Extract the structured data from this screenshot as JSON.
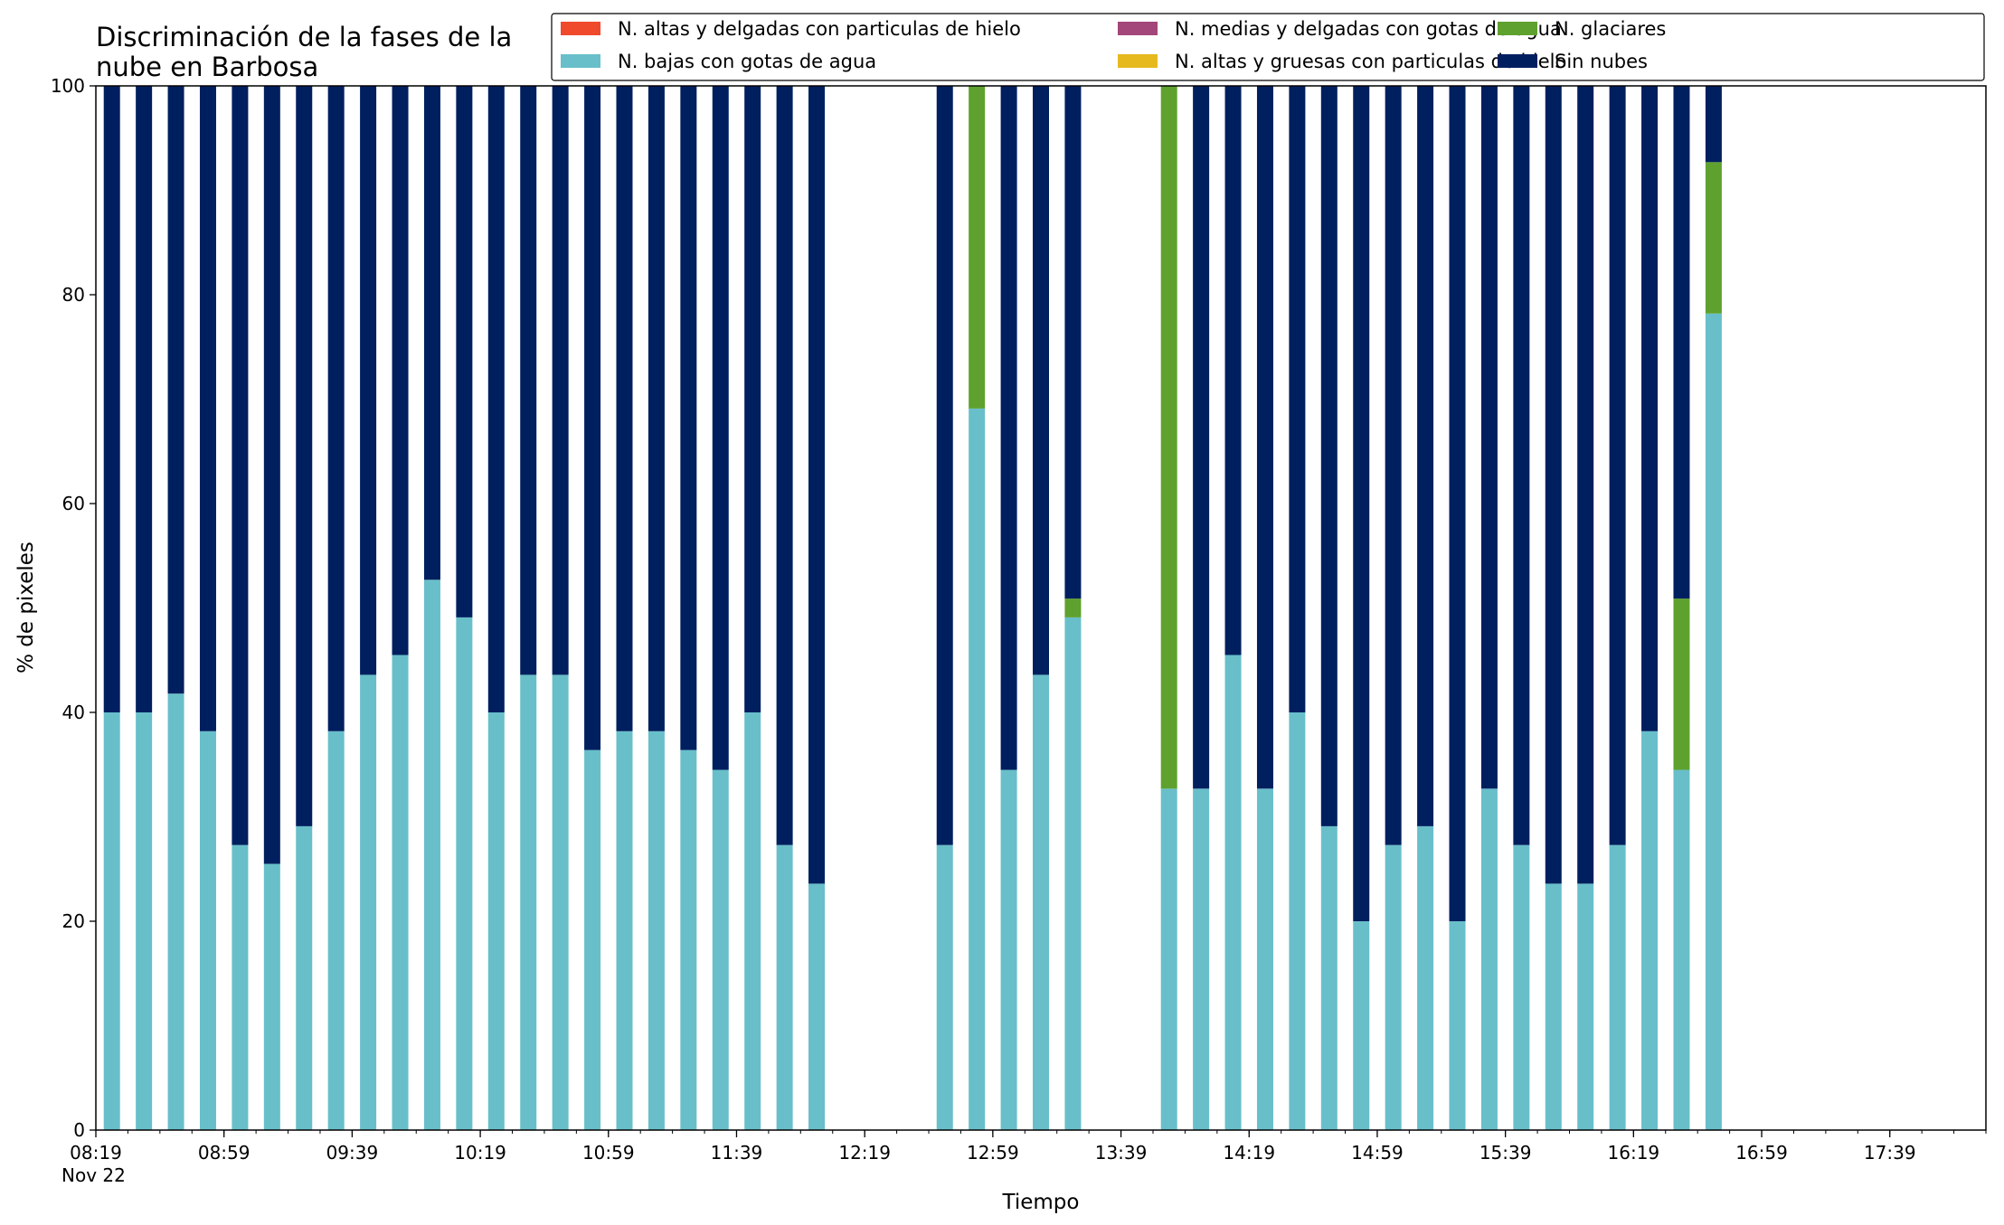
{
  "chart_data": {
    "type": "bar",
    "stacked": true,
    "title_lines": [
      "Discriminación de la fases de la",
      "nube en Barbosa"
    ],
    "xlabel": "Tiempo",
    "ylabel": "% de pixeles",
    "ylim": [
      0,
      100
    ],
    "y_ticks": [
      0,
      20,
      40,
      60,
      80,
      100
    ],
    "x_range": [
      "08:19",
      "18:09"
    ],
    "x_major_ticks": [
      {
        "time": "08:19",
        "label": "08:19",
        "sublabel": "Nov 22"
      },
      {
        "time": "08:59",
        "label": "08:59"
      },
      {
        "time": "09:39",
        "label": "09:39"
      },
      {
        "time": "10:19",
        "label": "10:19"
      },
      {
        "time": "10:59",
        "label": "10:59"
      },
      {
        "time": "11:39",
        "label": "11:39"
      },
      {
        "time": "12:19",
        "label": "12:19"
      },
      {
        "time": "12:59",
        "label": "12:59"
      },
      {
        "time": "13:39",
        "label": "13:39"
      },
      {
        "time": "14:19",
        "label": "14:19"
      },
      {
        "time": "14:59",
        "label": "14:59"
      },
      {
        "time": "15:39",
        "label": "15:39"
      },
      {
        "time": "16:19",
        "label": "16:19"
      },
      {
        "time": "16:59",
        "label": "16:59"
      },
      {
        "time": "17:39",
        "label": "17:39"
      }
    ],
    "x_minor_tick_interval_minutes": 10,
    "grid": false,
    "legend_position": "top-right",
    "legend": [
      {
        "name": "N. altas y delgadas con particulas de hielo",
        "color": "#ef4a2c"
      },
      {
        "name": "N. bajas con gotas de agua",
        "color": "#68bfc9"
      },
      {
        "name": "N. medias y delgadas con gotas de agua",
        "color": "#a3467a"
      },
      {
        "name": "N. altas y gruesas con particulas de hielo",
        "color": "#e6b91e"
      },
      {
        "name": "N. glaciares",
        "color": "#5fa12e"
      },
      {
        "name": "Sin nubes",
        "color": "#001f5f"
      }
    ],
    "x": [
      "08:24",
      "08:34",
      "08:44",
      "08:54",
      "09:04",
      "09:14",
      "09:24",
      "09:34",
      "09:44",
      "09:54",
      "10:04",
      "10:14",
      "10:24",
      "10:34",
      "10:44",
      "10:54",
      "11:04",
      "11:14",
      "11:24",
      "11:34",
      "11:44",
      "11:54",
      "12:04",
      "12:14",
      "12:24",
      "12:34",
      "12:44",
      "12:54",
      "13:04",
      "13:14",
      "13:24",
      "13:34",
      "13:44",
      "13:54",
      "14:04",
      "14:14",
      "14:24",
      "14:34",
      "14:44",
      "14:54",
      "15:04",
      "15:14",
      "15:24",
      "15:34",
      "15:44",
      "15:54",
      "16:04",
      "16:14",
      "16:24",
      "16:34",
      "16:44",
      "16:54",
      "17:04",
      "17:14",
      "17:24",
      "17:34",
      "17:44",
      "17:54",
      "18:04"
    ],
    "series": [
      {
        "name": "N. altas y delgadas con particulas de hielo",
        "color": "#ef4a2c",
        "values": [
          0,
          0,
          0,
          0,
          0,
          0,
          0,
          0,
          0,
          0,
          0,
          0,
          0,
          0,
          0,
          0,
          0,
          0,
          0,
          0,
          0,
          0,
          0,
          0,
          0,
          0,
          0,
          0,
          0,
          0,
          0,
          0,
          0,
          0,
          0,
          0,
          0,
          0,
          0,
          0,
          0,
          0,
          0,
          0,
          0,
          0,
          0,
          0,
          0,
          0,
          0,
          0,
          0,
          0,
          0,
          0,
          0,
          0,
          0
        ]
      },
      {
        "name": "N. altas y gruesas con particulas de hielo",
        "color": "#e6b91e",
        "values": [
          0,
          0,
          0,
          0,
          0,
          0,
          0,
          0,
          0,
          0,
          0,
          0,
          0,
          0,
          0,
          0,
          0,
          0,
          0,
          0,
          0,
          0,
          0,
          0,
          0,
          0,
          0,
          0,
          0,
          0,
          0,
          0,
          0,
          0,
          0,
          0,
          0,
          0,
          0,
          0,
          0,
          0,
          0,
          0,
          0,
          0,
          0,
          0,
          0,
          0,
          0,
          0,
          0,
          0,
          0,
          0,
          0,
          0,
          0
        ]
      },
      {
        "name": "N. bajas con gotas de agua",
        "color": "#68bfc9",
        "values": [
          40,
          40,
          41.8,
          38.2,
          27.3,
          25.5,
          29.1,
          38.2,
          43.6,
          45.5,
          52.7,
          49.1,
          40,
          43.6,
          43.6,
          36.4,
          38.2,
          38.2,
          36.4,
          34.5,
          40,
          27.3,
          23.6,
          0,
          0,
          0,
          27.3,
          69.1,
          34.5,
          43.6,
          49.1,
          0,
          0,
          32.7,
          32.7,
          45.5,
          32.7,
          40,
          29.1,
          20,
          27.3,
          29.1,
          20,
          32.7,
          27.3,
          23.6,
          23.6,
          27.3,
          38.2,
          34.5,
          78.2,
          0,
          0,
          0,
          0,
          0,
          0,
          0,
          0
        ]
      },
      {
        "name": "N. glaciares",
        "color": "#5fa12e",
        "values": [
          0,
          0,
          0,
          0,
          0,
          0,
          0,
          0,
          0,
          0,
          0,
          0,
          0,
          0,
          0,
          0,
          0,
          0,
          0,
          0,
          0,
          0,
          0,
          0,
          0,
          0,
          0,
          30.9,
          0,
          0,
          1.8,
          0,
          0,
          67.3,
          0,
          0,
          0,
          0,
          0,
          0,
          0,
          0,
          0,
          0,
          0,
          0,
          0,
          0,
          0,
          16.4,
          14.5,
          0,
          0,
          0,
          0,
          0,
          0,
          0,
          0
        ]
      },
      {
        "name": "N. medias y delgadas con gotas de agua",
        "color": "#a3467a",
        "values": [
          0,
          0,
          0,
          0,
          0,
          0,
          0,
          0,
          0,
          0,
          0,
          0,
          0,
          0,
          0,
          0,
          0,
          0,
          0,
          0,
          0,
          0,
          0,
          0,
          0,
          0,
          0,
          0,
          0,
          0,
          0,
          0,
          0,
          0,
          0,
          0,
          0,
          0,
          0,
          0,
          0,
          0,
          0,
          0,
          0,
          0,
          0,
          0,
          0,
          0,
          0,
          0,
          0,
          0,
          0,
          0,
          0,
          0,
          0
        ]
      },
      {
        "name": "Sin nubes",
        "color": "#001f5f",
        "values": [
          60,
          60,
          58.2,
          61.8,
          72.7,
          74.5,
          70.9,
          61.8,
          56.4,
          54.5,
          47.3,
          50.9,
          60,
          56.4,
          56.4,
          63.6,
          61.8,
          61.8,
          63.6,
          65.5,
          60,
          72.7,
          76.4,
          0,
          0,
          0,
          72.7,
          0,
          65.5,
          56.4,
          49.1,
          0,
          0,
          0,
          67.3,
          54.5,
          67.3,
          60,
          70.9,
          80,
          72.7,
          70.9,
          80,
          67.3,
          72.7,
          76.4,
          76.4,
          72.7,
          61.8,
          49.1,
          7.3,
          0,
          0,
          0,
          0,
          0,
          0,
          0,
          0
        ]
      }
    ]
  }
}
